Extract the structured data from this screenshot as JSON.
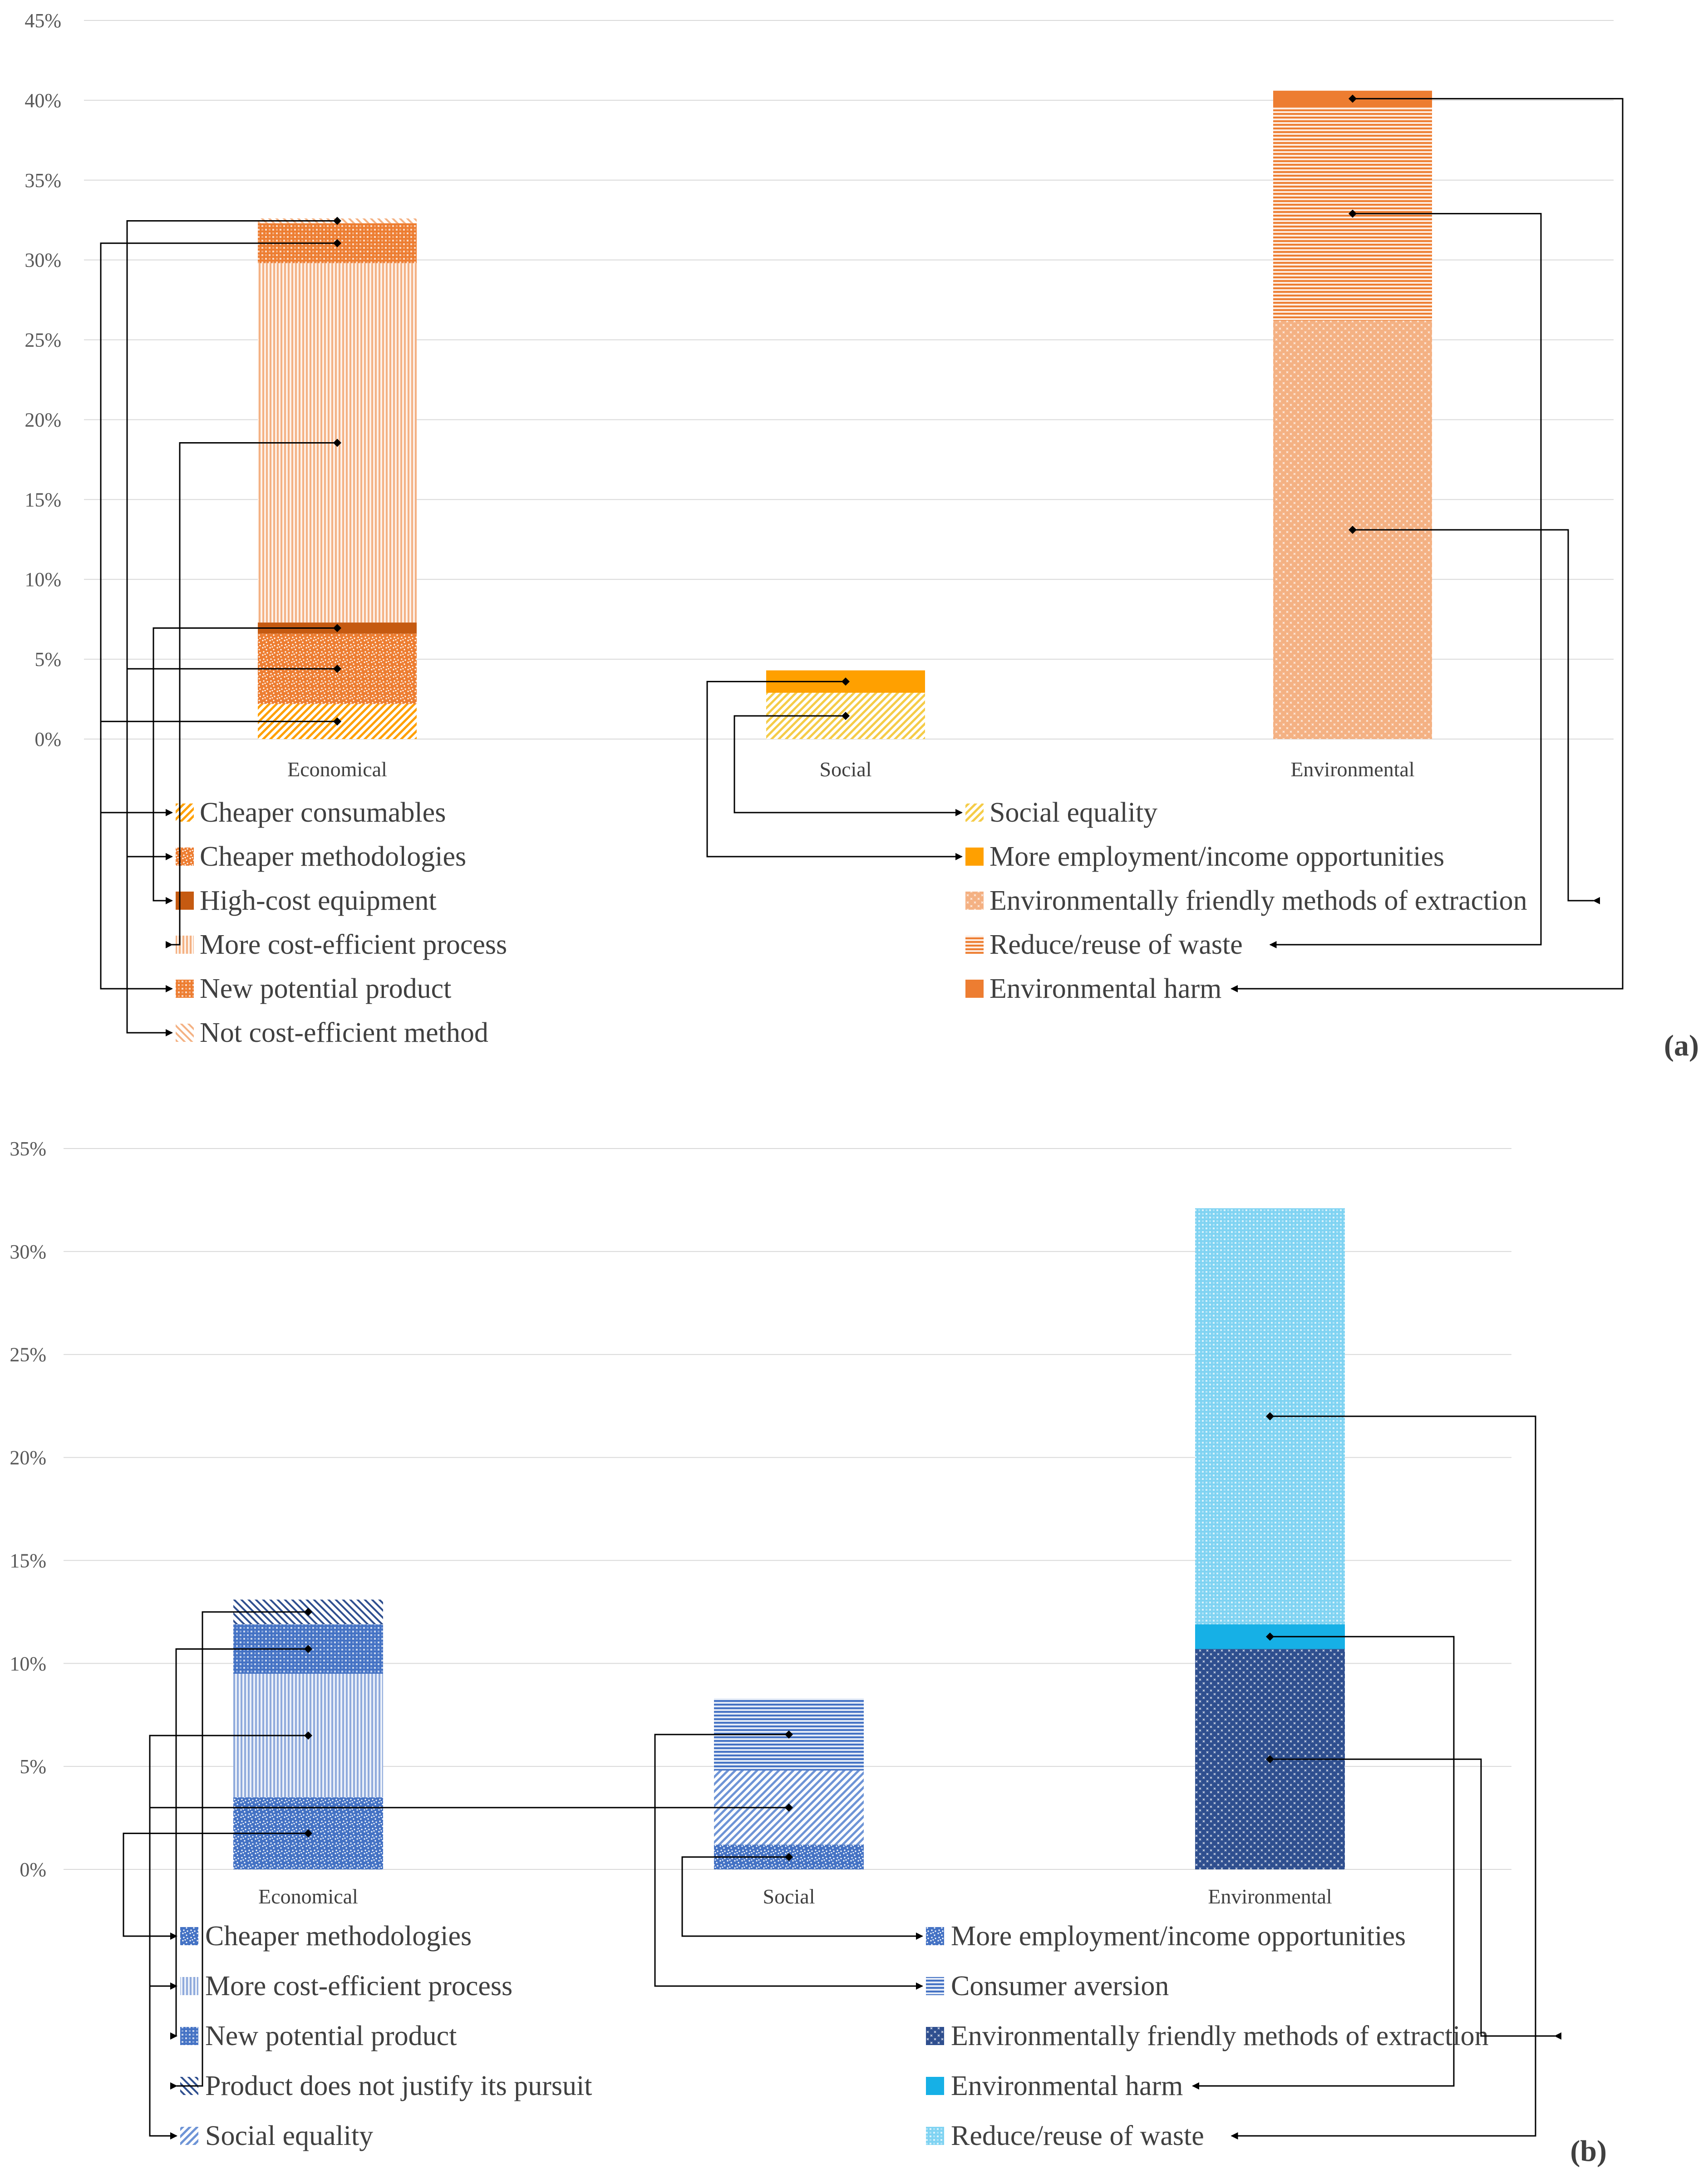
{
  "colors": {
    "orange_light": "#f4b183",
    "orange_mid": "#ed7d31",
    "orange_dark": "#c55a11",
    "orange_bright": "#ffa000",
    "yellow": "#f5cc48",
    "blue_dark": "#2f4f8f",
    "blue_mid": "#4472c4",
    "blue_light": "#8faadc",
    "cyan": "#16b0e6",
    "cyan_light": "#7fd3f2"
  },
  "chart_data": [
    {
      "panel_label": "(a)",
      "type": "bar",
      "stacked": true,
      "categories": [
        "Economical",
        "Social",
        "Environmental"
      ],
      "ylim": [
        0,
        45
      ],
      "yticks": [
        "0%",
        "5%",
        "10%",
        "15%",
        "20%",
        "25%",
        "30%",
        "35%",
        "40%",
        "45%"
      ],
      "grid": true,
      "series": [
        {
          "name": "Cheaper consumables",
          "category": "Economical",
          "value": 2.2,
          "color": "#ffa000",
          "pattern": "diag"
        },
        {
          "name": "Cheaper methodologies",
          "category": "Economical",
          "value": 4.4,
          "color": "#ed7d31",
          "pattern": "dots"
        },
        {
          "name": "High-cost equipment",
          "category": "Economical",
          "value": 0.7,
          "color": "#c55a11",
          "pattern": "solid"
        },
        {
          "name": "More cost-efficient process",
          "category": "Economical",
          "value": 22.5,
          "color": "#f4b183",
          "pattern": "vlines"
        },
        {
          "name": "New potential product",
          "category": "Economical",
          "value": 2.5,
          "color": "#ed7d31",
          "pattern": "check"
        },
        {
          "name": "Not cost-efficient method",
          "category": "Economical",
          "value": 0.3,
          "color": "#f4b183",
          "pattern": "diagr"
        },
        {
          "name": "Social equality",
          "category": "Social",
          "value": 2.9,
          "color": "#f5cc48",
          "pattern": "diag"
        },
        {
          "name": "More employment/income opportunities",
          "category": "Social",
          "value": 1.4,
          "color": "#ffa000",
          "pattern": "solid"
        },
        {
          "name": "Environmentally friendly methods of extraction",
          "category": "Environmental",
          "value": 26.2,
          "color": "#f4b183",
          "pattern": "cross"
        },
        {
          "name": "Reduce/reuse of waste",
          "category": "Environmental",
          "value": 13.4,
          "color": "#ed7d31",
          "pattern": "hlines"
        },
        {
          "name": "Environmental harm",
          "category": "Environmental",
          "value": 1.0,
          "color": "#ed7d31",
          "pattern": "solid"
        }
      ]
    },
    {
      "panel_label": "(b)",
      "type": "bar",
      "stacked": true,
      "categories": [
        "Economical",
        "Social",
        "Environmental"
      ],
      "ylim": [
        0,
        35
      ],
      "yticks": [
        "0%",
        "5%",
        "10%",
        "15%",
        "20%",
        "25%",
        "30%",
        "35%"
      ],
      "grid": true,
      "series": [
        {
          "name": "Cheaper methodologies",
          "category": "Economical",
          "value": 3.5,
          "color": "#4472c4",
          "pattern": "dots"
        },
        {
          "name": "More cost-efficient process",
          "category": "Economical",
          "value": 6.0,
          "color": "#8faadc",
          "pattern": "vlines"
        },
        {
          "name": "New potential product",
          "category": "Economical",
          "value": 2.4,
          "color": "#4472c4",
          "pattern": "check"
        },
        {
          "name": "Product does not justify its pursuit",
          "category": "Economical",
          "value": 1.2,
          "color": "#2f4f8f",
          "pattern": "diagr"
        },
        {
          "name": "More employment/income opportunities",
          "category": "Social",
          "value": 1.2,
          "color": "#4472c4",
          "pattern": "dots"
        },
        {
          "name": "Social equality",
          "category": "Social",
          "value": 3.6,
          "color": "#6e94d6",
          "pattern": "diag"
        },
        {
          "name": "Consumer aversion",
          "category": "Social",
          "value": 3.5,
          "color": "#4472c4",
          "pattern": "hlines"
        },
        {
          "name": "Environmentally friendly methods of extraction",
          "category": "Environmental",
          "value": 10.7,
          "color": "#2f4f8f",
          "pattern": "cross"
        },
        {
          "name": "Environmental harm",
          "category": "Environmental",
          "value": 1.2,
          "color": "#16b0e6",
          "pattern": "solid"
        },
        {
          "name": "Reduce/reuse of waste",
          "category": "Environmental",
          "value": 20.2,
          "color": "#7fd3f2",
          "pattern": "check"
        }
      ]
    }
  ]
}
